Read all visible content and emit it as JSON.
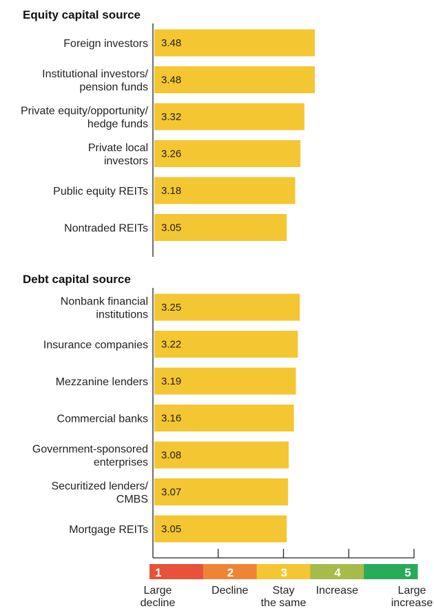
{
  "chart_data": [
    {
      "type": "bar",
      "orientation": "horizontal",
      "title": "Equity capital source",
      "categories": [
        [
          "Foreign investors"
        ],
        [
          "Institutional investors/",
          "pension funds"
        ],
        [
          "Private equity/opportunity/",
          "hedge funds"
        ],
        [
          "Private local",
          "investors"
        ],
        [
          "Public equity REITs"
        ],
        [
          "Nontraded REITs"
        ]
      ],
      "values": [
        3.48,
        3.48,
        3.32,
        3.26,
        3.18,
        3.05
      ],
      "xlim": [
        1,
        5
      ],
      "bar_color": "#f4c631"
    },
    {
      "type": "bar",
      "orientation": "horizontal",
      "title": "Debt capital source",
      "categories": [
        [
          "Nonbank financial",
          "institutions"
        ],
        [
          "Insurance companies"
        ],
        [
          "Mezzanine lenders"
        ],
        [
          "Commercial banks"
        ],
        [
          "Government-sponsored",
          "enterprises"
        ],
        [
          "Securitized lenders/",
          "CMBS"
        ],
        [
          "Mortgage REITs"
        ]
      ],
      "values": [
        3.25,
        3.22,
        3.19,
        3.16,
        3.08,
        3.07,
        3.05
      ],
      "xlim": [
        1,
        5
      ],
      "bar_color": "#f4c631"
    }
  ],
  "scale": [
    {
      "value": "1",
      "label": [
        "Large",
        "decline"
      ],
      "color": "#e8513a"
    },
    {
      "value": "2",
      "label": [
        "Decline"
      ],
      "color": "#ee8536"
    },
    {
      "value": "3",
      "label": [
        "Stay",
        "the same"
      ],
      "color": "#f4c631"
    },
    {
      "value": "4",
      "label": [
        "Increase"
      ],
      "color": "#a6bb4a"
    },
    {
      "value": "5",
      "label": [
        "Large",
        "increase"
      ],
      "color": "#2aab5a"
    }
  ],
  "colors": {
    "axis": "#222222",
    "text": "#222222"
  }
}
